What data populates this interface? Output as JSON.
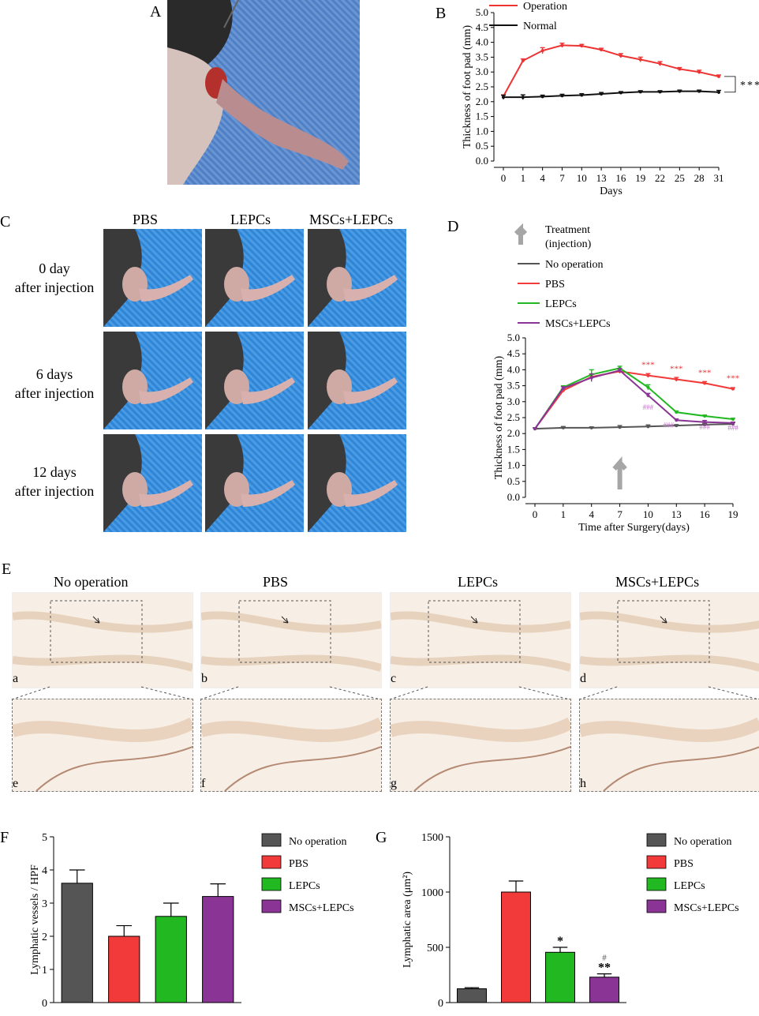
{
  "panels": {
    "A": "A",
    "B": "B",
    "C": "C",
    "D": "D",
    "E": "E",
    "F": "F",
    "G": "G"
  },
  "panelC": {
    "columns": [
      "PBS",
      "LEPCs",
      "MSCs+LEPCs"
    ],
    "rows": [
      [
        "0 day",
        "after injection"
      ],
      [
        "6 days",
        "after injection"
      ],
      [
        "12 days",
        "after injection"
      ]
    ]
  },
  "panelE": {
    "columns": [
      "No operation",
      "PBS",
      "LEPCs",
      "MSCs+LEPCs"
    ],
    "top_letters": [
      "a",
      "b",
      "c",
      "d"
    ],
    "bottom_letters": [
      "e",
      "f",
      "g",
      "h"
    ]
  },
  "colors": {
    "operation": "#ee3333",
    "normal": "#111111",
    "noop": "#555555",
    "pbs": "#f23a3a",
    "lepcs": "#22b822",
    "mscs": "#8a3596",
    "arrow": "#a6a6a6",
    "sig": "#ee3333",
    "hash": "#c070c8"
  },
  "chart_data": [
    {
      "id": "B",
      "type": "line",
      "ylabel": "Thickness of foot pad (mm)",
      "xlabel": "Days",
      "x": [
        0,
        1,
        4,
        7,
        10,
        13,
        16,
        19,
        22,
        25,
        28,
        31
      ],
      "ylim": [
        0,
        5.0
      ],
      "yticks": [
        "0.0",
        "0.5",
        "1.0",
        "1.5",
        "2.0",
        "2.5",
        "3.0",
        "3.5",
        "4.0",
        "4.5",
        "5.0"
      ],
      "series": [
        {
          "name": "Operation",
          "values": [
            2.18,
            3.38,
            3.72,
            3.9,
            3.88,
            3.75,
            3.55,
            3.42,
            3.28,
            3.1,
            3.0,
            2.85
          ],
          "err": [
            0.05,
            0.06,
            0.1,
            0.07,
            0.05,
            0.05,
            0.07,
            0.08,
            0.07,
            0.05,
            0.06,
            0.05
          ]
        },
        {
          "name": "Normal",
          "values": [
            2.15,
            2.15,
            2.17,
            2.2,
            2.22,
            2.26,
            2.3,
            2.33,
            2.33,
            2.35,
            2.35,
            2.32
          ],
          "err": [
            0.07,
            0.08,
            0.05,
            0.05,
            0.05,
            0.05,
            0.04,
            0.04,
            0.04,
            0.04,
            0.04,
            0.06
          ]
        }
      ],
      "annotation": "****"
    },
    {
      "id": "D",
      "type": "line",
      "ylabel": "Thickness of foot pad (mm)",
      "xlabel": "Time after Surgery(days)",
      "x": [
        0,
        1,
        4,
        7,
        10,
        13,
        16,
        19
      ],
      "ylim": [
        0,
        5.0
      ],
      "yticks": [
        "0.0",
        "0.5",
        "1.0",
        "1.5",
        "2.0",
        "2.5",
        "3.0",
        "3.5",
        "4.0",
        "4.5",
        "5.0"
      ],
      "treatment_label": [
        "Treatment",
        "(injection)"
      ],
      "series": [
        {
          "name": "No operation",
          "values": [
            2.15,
            2.18,
            2.18,
            2.2,
            2.22,
            2.25,
            2.28,
            2.3
          ],
          "err": [
            0.03,
            0.04,
            0.03,
            0.05,
            0.05,
            0.03,
            0.04,
            0.04
          ]
        },
        {
          "name": "PBS",
          "values": [
            2.15,
            3.35,
            3.78,
            3.95,
            3.82,
            3.7,
            3.58,
            3.4
          ],
          "err": [
            0.03,
            0.05,
            0.08,
            0.06,
            0.06,
            0.06,
            0.05,
            0.04
          ]
        },
        {
          "name": "LEPCs",
          "values": [
            2.15,
            3.45,
            3.85,
            4.05,
            3.45,
            2.67,
            2.55,
            2.45
          ],
          "err": [
            0.03,
            0.05,
            0.15,
            0.06,
            0.08,
            0.04,
            0.03,
            0.03
          ]
        },
        {
          "name": "MSCs+LEPCs",
          "values": [
            2.15,
            3.42,
            3.75,
            3.98,
            3.2,
            2.42,
            2.36,
            2.33
          ],
          "err": [
            0.03,
            0.05,
            0.12,
            0.06,
            0.06,
            0.04,
            0.05,
            0.03
          ]
        }
      ],
      "sig_marks": [
        "***",
        "***",
        "***",
        "***"
      ],
      "hash_marks": [
        "###",
        "###",
        "###",
        "###"
      ]
    },
    {
      "id": "F",
      "type": "bar",
      "ylabel": "Lymphatic vessels / HPF",
      "categories": [
        "No operation",
        "PBS",
        "LEPCs",
        "MSCs+LEPCs"
      ],
      "values": [
        3.6,
        2.0,
        2.6,
        3.2
      ],
      "err": [
        0.4,
        0.32,
        0.4,
        0.38
      ],
      "ylim": [
        0,
        5
      ],
      "yticks": [
        "0",
        "1",
        "2",
        "3",
        "4",
        "5"
      ]
    },
    {
      "id": "G",
      "type": "bar",
      "ylabel": "Lymphatic area (μm²)",
      "categories": [
        "No operation",
        "PBS",
        "LEPCs",
        "MSCs+LEPCs"
      ],
      "values": [
        125,
        1000,
        455,
        230
      ],
      "err": [
        10,
        100,
        45,
        30
      ],
      "ylim": [
        0,
        1500
      ],
      "yticks": [
        "0",
        "500",
        "1000",
        "1500"
      ],
      "marks": [
        "",
        "",
        "*",
        "**"
      ],
      "hash": [
        "",
        "",
        "",
        "#"
      ]
    }
  ]
}
